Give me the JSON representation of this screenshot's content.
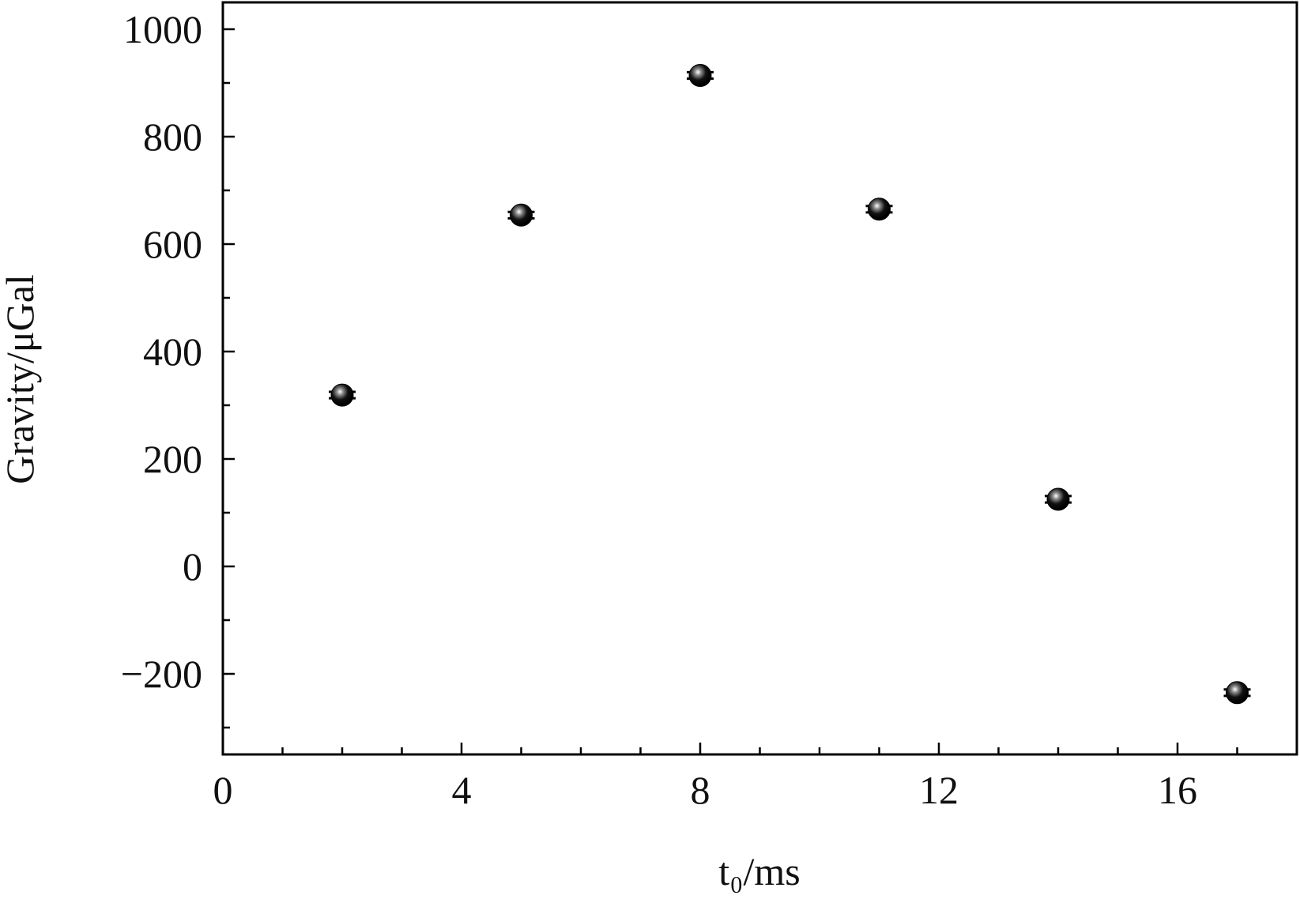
{
  "chart_data": {
    "type": "scatter",
    "xlabel": "t₀/ms",
    "ylabel": "Gravity/μGal",
    "x": [
      2,
      5,
      8,
      11,
      14,
      17
    ],
    "values": [
      319,
      654,
      914,
      665,
      125,
      -235
    ],
    "errors": [
      6,
      6,
      6,
      6,
      6,
      6
    ],
    "color": "#000000",
    "xlim": [
      0,
      18
    ],
    "xticks": [
      0,
      4,
      8,
      12,
      16
    ],
    "xminorticks": [
      1,
      2,
      3,
      5,
      6,
      7,
      9,
      10,
      11,
      13,
      14,
      15,
      17
    ],
    "ylim": [
      -350,
      1050
    ],
    "yticks": [
      {
        "value": -200,
        "label": "−200"
      },
      0,
      200,
      400,
      600,
      800,
      1000
    ],
    "yminorticks": [
      -300,
      -100,
      100,
      300,
      500,
      700,
      900
    ]
  }
}
